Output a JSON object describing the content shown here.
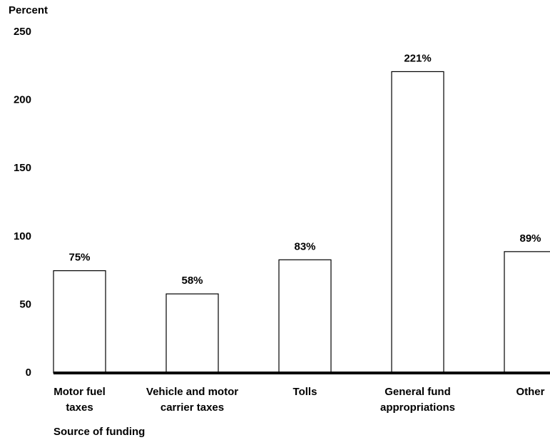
{
  "chart_data": {
    "type": "bar",
    "y_axis_label": "Percent",
    "x_axis_label": "Source of funding",
    "categories": [
      "Motor fuel\ntaxes",
      "Vehicle and motor\ncarrier taxes",
      "Tolls",
      "General fund\nappropriations",
      "Other"
    ],
    "values": [
      75,
      58,
      83,
      221,
      89
    ],
    "value_labels": [
      "75%",
      "58%",
      "83%",
      "221%",
      "89%"
    ],
    "color": "#ffffff",
    "ylim": [
      0,
      250
    ],
    "yticks": [
      0,
      50,
      100,
      150,
      200,
      250
    ],
    "grid": false
  }
}
